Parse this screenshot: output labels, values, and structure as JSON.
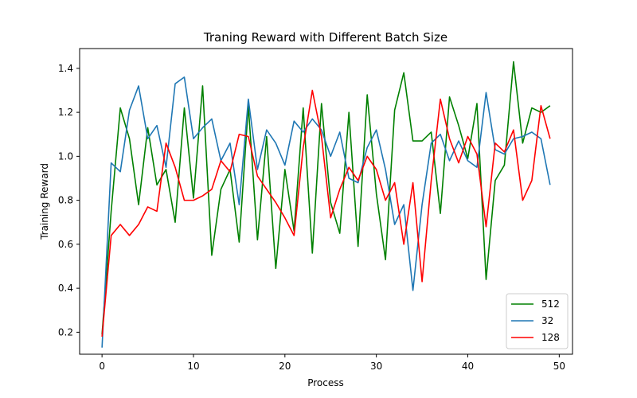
{
  "chart_data": {
    "type": "line",
    "title": "Traning Reward with Different Batch Size",
    "xlabel": "Process",
    "ylabel": "Training Reward",
    "xlim": [
      -2.45,
      51.45
    ],
    "ylim": [
      0.1,
      1.49
    ],
    "xticks": [
      0,
      10,
      20,
      30,
      40,
      50
    ],
    "yticks": [
      0.2,
      0.4,
      0.6,
      0.8,
      1.0,
      1.2,
      1.4
    ],
    "xtick_labels": [
      "0",
      "10",
      "20",
      "30",
      "40",
      "50"
    ],
    "ytick_labels": [
      "0.2",
      "0.4",
      "0.6",
      "0.8",
      "1.0",
      "1.2",
      "1.4"
    ],
    "grid": false,
    "legend_position": "lower-right",
    "x": [
      0,
      1,
      2,
      3,
      4,
      5,
      6,
      7,
      8,
      9,
      10,
      11,
      12,
      13,
      14,
      15,
      16,
      17,
      18,
      19,
      20,
      21,
      22,
      23,
      24,
      25,
      26,
      27,
      28,
      29,
      30,
      31,
      32,
      33,
      34,
      35,
      36,
      37,
      38,
      39,
      40,
      41,
      42,
      43,
      44,
      45,
      46,
      47,
      48,
      49
    ],
    "series": [
      {
        "name": "512",
        "color": "#008000",
        "values": [
          0.19,
          0.75,
          1.22,
          1.08,
          0.78,
          1.13,
          0.87,
          0.94,
          0.7,
          1.22,
          0.81,
          1.32,
          0.55,
          0.85,
          0.94,
          0.61,
          1.23,
          0.62,
          1.09,
          0.49,
          0.94,
          0.66,
          1.22,
          0.56,
          1.24,
          0.79,
          0.65,
          1.2,
          0.59,
          1.28,
          0.83,
          0.53,
          1.21,
          1.38,
          1.07,
          1.07,
          1.11,
          0.74,
          1.27,
          1.14,
          0.99,
          1.24,
          0.44,
          0.89,
          0.96,
          1.43,
          1.06,
          1.22,
          1.2,
          1.23
        ]
      },
      {
        "name": "32",
        "color": "#1f77b4",
        "values": [
          0.13,
          0.97,
          0.93,
          1.21,
          1.32,
          1.08,
          1.14,
          0.95,
          1.33,
          1.36,
          1.08,
          1.13,
          1.17,
          0.98,
          1.06,
          0.78,
          1.26,
          0.94,
          1.12,
          1.06,
          0.96,
          1.16,
          1.11,
          1.17,
          1.12,
          1.0,
          1.11,
          0.9,
          0.88,
          1.04,
          1.12,
          0.94,
          0.69,
          0.78,
          0.39,
          0.78,
          1.06,
          1.1,
          0.98,
          1.07,
          0.98,
          0.95,
          1.29,
          1.03,
          1.01,
          1.08,
          1.09,
          1.11,
          1.08,
          0.87
        ]
      },
      {
        "name": "128",
        "color": "#ff0000",
        "values": [
          0.18,
          0.64,
          0.69,
          0.64,
          0.69,
          0.77,
          0.75,
          1.06,
          0.95,
          0.8,
          0.8,
          0.82,
          0.85,
          0.98,
          0.93,
          1.1,
          1.09,
          0.91,
          0.85,
          0.79,
          0.72,
          0.64,
          1.04,
          1.3,
          1.09,
          0.72,
          0.85,
          0.95,
          0.89,
          1.0,
          0.94,
          0.8,
          0.88,
          0.6,
          0.88,
          0.43,
          0.89,
          1.26,
          1.08,
          0.97,
          1.09,
          1.01,
          0.68,
          1.06,
          1.02,
          1.12,
          0.8,
          0.89,
          1.23,
          1.08
        ]
      }
    ]
  }
}
